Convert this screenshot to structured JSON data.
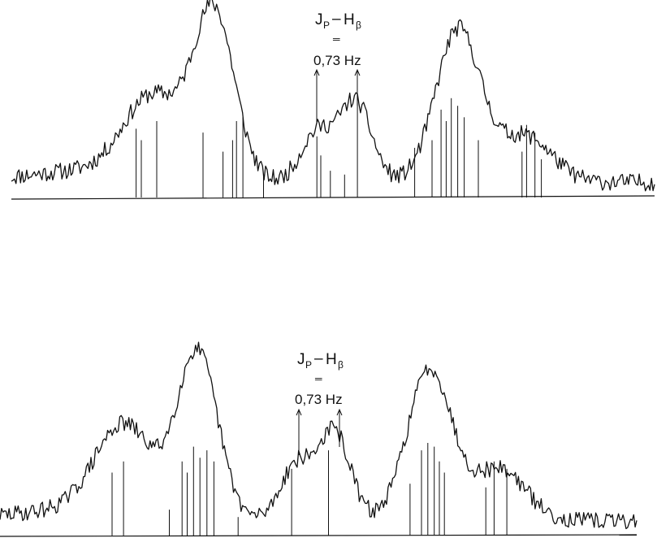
{
  "chart_data": [
    {
      "type": "line",
      "annotation": {
        "j_symbol": "J",
        "j_subscript": "P",
        "dash": "–",
        "h_symbol": "H",
        "h_subscript": "β",
        "equals": "═",
        "value": "0,73 Hz"
      },
      "x_range": [
        0,
        100
      ],
      "y_range": [
        0,
        100
      ],
      "peaks": [
        {
          "x": 22,
          "h": 42,
          "w": 4.5
        },
        {
          "x": 31.5,
          "h": 88,
          "w": 3.2
        },
        {
          "x": 47.5,
          "h": 26,
          "w": 2.5
        },
        {
          "x": 53.5,
          "h": 42,
          "w": 2.5
        },
        {
          "x": 69.5,
          "h": 80,
          "w": 3.5
        },
        {
          "x": 80,
          "h": 24,
          "w": 4
        }
      ],
      "sticks": [
        {
          "x": 19.4,
          "h": 36
        },
        {
          "x": 20.2,
          "h": 30
        },
        {
          "x": 22.6,
          "h": 40
        },
        {
          "x": 29.8,
          "h": 34
        },
        {
          "x": 32.9,
          "h": 24
        },
        {
          "x": 34.4,
          "h": 30
        },
        {
          "x": 35.0,
          "h": 40
        },
        {
          "x": 36.0,
          "h": 42
        },
        {
          "x": 39.2,
          "h": 12
        },
        {
          "x": 47.5,
          "h": 32
        },
        {
          "x": 48.1,
          "h": 22
        },
        {
          "x": 49.6,
          "h": 14
        },
        {
          "x": 51.8,
          "h": 12
        },
        {
          "x": 53.8,
          "h": 50
        },
        {
          "x": 62.7,
          "h": 26
        },
        {
          "x": 65.4,
          "h": 30
        },
        {
          "x": 66.8,
          "h": 46
        },
        {
          "x": 67.6,
          "h": 40
        },
        {
          "x": 68.4,
          "h": 52
        },
        {
          "x": 69.4,
          "h": 48
        },
        {
          "x": 70.4,
          "h": 42
        },
        {
          "x": 72.6,
          "h": 30
        },
        {
          "x": 79.4,
          "h": 24
        },
        {
          "x": 80.1,
          "h": 38
        },
        {
          "x": 81.4,
          "h": 34
        },
        {
          "x": 82.4,
          "h": 20
        }
      ]
    },
    {
      "type": "line",
      "annotation": {
        "j_symbol": "J",
        "j_subscript": "P",
        "dash": "–",
        "h_symbol": "H",
        "h_subscript": "β",
        "equals": "═",
        "value": "0,73 Hz"
      },
      "x_range": [
        0,
        100
      ],
      "y_range": [
        0,
        100
      ],
      "peaks": [
        {
          "x": 19.5,
          "h": 48,
          "w": 4.5
        },
        {
          "x": 31,
          "h": 90,
          "w": 3.2
        },
        {
          "x": 46.5,
          "h": 30,
          "w": 2.5
        },
        {
          "x": 52.5,
          "h": 48,
          "w": 2.5
        },
        {
          "x": 67.5,
          "h": 82,
          "w": 3.5
        },
        {
          "x": 78.5,
          "h": 28,
          "w": 4
        }
      ],
      "sticks": [
        {
          "x": 17.6,
          "h": 34
        },
        {
          "x": 19.4,
          "h": 40
        },
        {
          "x": 26.6,
          "h": 14
        },
        {
          "x": 28.6,
          "h": 40
        },
        {
          "x": 29.4,
          "h": 34
        },
        {
          "x": 30.4,
          "h": 48
        },
        {
          "x": 31.4,
          "h": 42
        },
        {
          "x": 32.5,
          "h": 46
        },
        {
          "x": 33.6,
          "h": 40
        },
        {
          "x": 37.4,
          "h": 10
        },
        {
          "x": 45.8,
          "h": 36
        },
        {
          "x": 51.6,
          "h": 46
        },
        {
          "x": 64.4,
          "h": 28
        },
        {
          "x": 66.2,
          "h": 46
        },
        {
          "x": 67.2,
          "h": 50
        },
        {
          "x": 68.2,
          "h": 48
        },
        {
          "x": 69.0,
          "h": 40
        },
        {
          "x": 69.8,
          "h": 34
        },
        {
          "x": 76.3,
          "h": 26
        },
        {
          "x": 77.6,
          "h": 40
        },
        {
          "x": 79.6,
          "h": 36
        }
      ]
    }
  ]
}
